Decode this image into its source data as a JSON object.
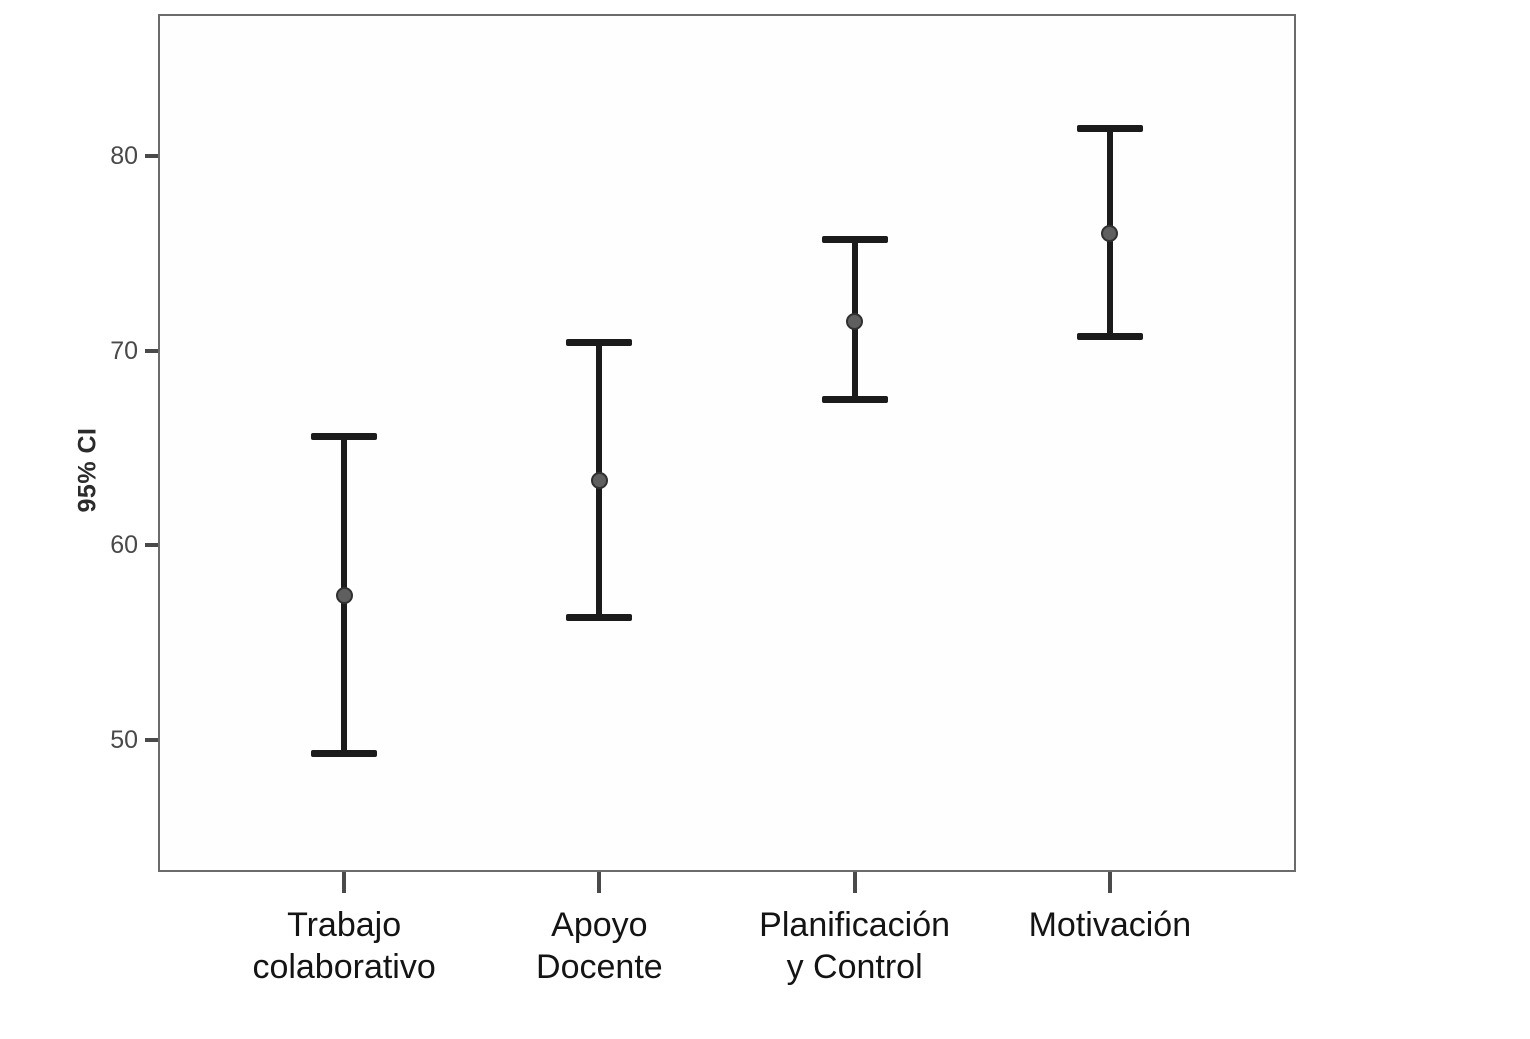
{
  "chart_data": {
    "type": "errorbar",
    "title": "",
    "xlabel": "",
    "ylabel": "95% CI",
    "categories": [
      "Trabajo\ncolaborativo",
      "Apoyo\nDocente",
      "Planificación\ny Control",
      "Motivación"
    ],
    "points": [
      {
        "label": "Trabajo colaborativo",
        "mean": 57.4,
        "ci_low": 49.3,
        "ci_high": 65.6
      },
      {
        "label": "Apoyo Docente",
        "mean": 63.3,
        "ci_low": 56.3,
        "ci_high": 70.4
      },
      {
        "label": "Planificación y Control",
        "mean": 71.5,
        "ci_low": 67.5,
        "ci_high": 75.7
      },
      {
        "label": "Motivación",
        "mean": 76.0,
        "ci_low": 70.7,
        "ci_high": 81.4
      }
    ],
    "yticks": [
      50,
      60,
      70,
      80
    ],
    "ylim": [
      43.2,
      87.3
    ],
    "grid": false,
    "legend_position": "none",
    "colors": {
      "error_bar": "#1b1b1b",
      "marker_fill": "#5f5f5f",
      "marker_edge": "#303030",
      "frame": "#6b6b6b",
      "tick_text": "#494949",
      "category_text": "#141414",
      "background": "#ffffff"
    }
  }
}
